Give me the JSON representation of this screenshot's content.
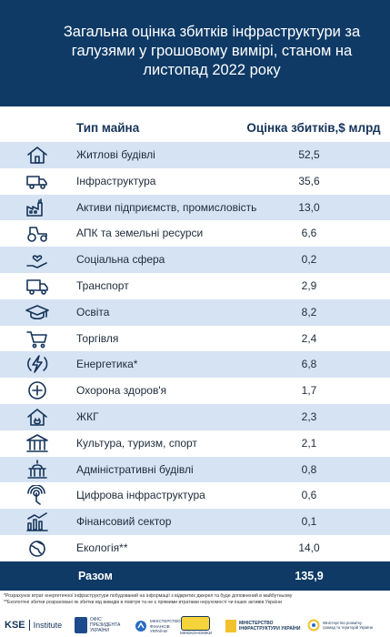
{
  "header": {
    "title": "Загальна оцінка збитків інфраструктури за галузями у грошовому вимірі, станом на листопад 2022 року"
  },
  "table": {
    "col_type": "Тип майна",
    "col_value": "Оцінка збитків,$ млрд",
    "rows": [
      {
        "icon": "house-icon",
        "label": "Житлові будівлі",
        "value": "52,5"
      },
      {
        "icon": "truck-icon",
        "label": "Інфраструктура",
        "value": "35,6"
      },
      {
        "icon": "factory-icon",
        "label": "Активи підприємств, промисловість",
        "value": "13,0"
      },
      {
        "icon": "tractor-icon",
        "label": "АПК та земельні ресурси",
        "value": "6,6"
      },
      {
        "icon": "hand-heart-icon",
        "label": "Соціальна сфера",
        "value": "0,2"
      },
      {
        "icon": "delivery-truck-icon",
        "label": "Транспорт",
        "value": "2,9"
      },
      {
        "icon": "graduation-cap-icon",
        "label": "Освіта",
        "value": "8,2"
      },
      {
        "icon": "shopping-cart-icon",
        "label": "Торгівля",
        "value": "2,4"
      },
      {
        "icon": "energy-bolt-icon",
        "label": "Енергетика*",
        "value": "6,8"
      },
      {
        "icon": "medical-cross-icon",
        "label": "Охорона здоров'я",
        "value": "1,7"
      },
      {
        "icon": "house-plug-icon",
        "label": "ЖКГ",
        "value": "2,3"
      },
      {
        "icon": "museum-icon",
        "label": "Культура, туризм, спорт",
        "value": "2,1"
      },
      {
        "icon": "government-building-icon",
        "label": "Адміністративні будівлі",
        "value": "0,8"
      },
      {
        "icon": "digital-touch-icon",
        "label": "Цифрова інфраструктура",
        "value": "0,6"
      },
      {
        "icon": "finance-chart-icon",
        "label": "Фінансовий сектор",
        "value": "0,1"
      },
      {
        "icon": "ecology-globe-icon",
        "label": "Екологія**",
        "value": "14,0"
      }
    ],
    "total_label": "Разом",
    "total_value": "135,9"
  },
  "footnotes": [
    "*Розрахунок втрат енергетичної інфраструктури побудований на інформації з відкритих джерел та буде доповнений в майбутньому",
    "**Екологічні збитки розраховані як збитки від викидів в повітря та не є прямими втратами нерухомості чи інших активів України"
  ],
  "logos": {
    "kse": "KSE",
    "kse_institute": "Institute",
    "op_line1": "ОФІС",
    "op_line2": "ПРЕЗИДЕНТА",
    "op_line3": "УКРАЇНИ",
    "mfin_line1": "МІНІСТЕРСТВО",
    "mfin_line2": "ФІНАНСІВ",
    "mfin_line3": "УКРАЇНИ",
    "med_line1": "МІНЕКОНОМІКИ",
    "minf_line1": "МІНІСТЕРСТВО",
    "minf_line2": "ІНФРАСТРУКТУРИ УКРАЇНИ",
    "mr_line1": "Міністерство розвитку",
    "mr_line2": "громад та територій України"
  },
  "colors": {
    "header_bg": "#0f3a66",
    "row_alt_bg": "#d6e3f3",
    "text_dark": "#1d2b3a"
  }
}
